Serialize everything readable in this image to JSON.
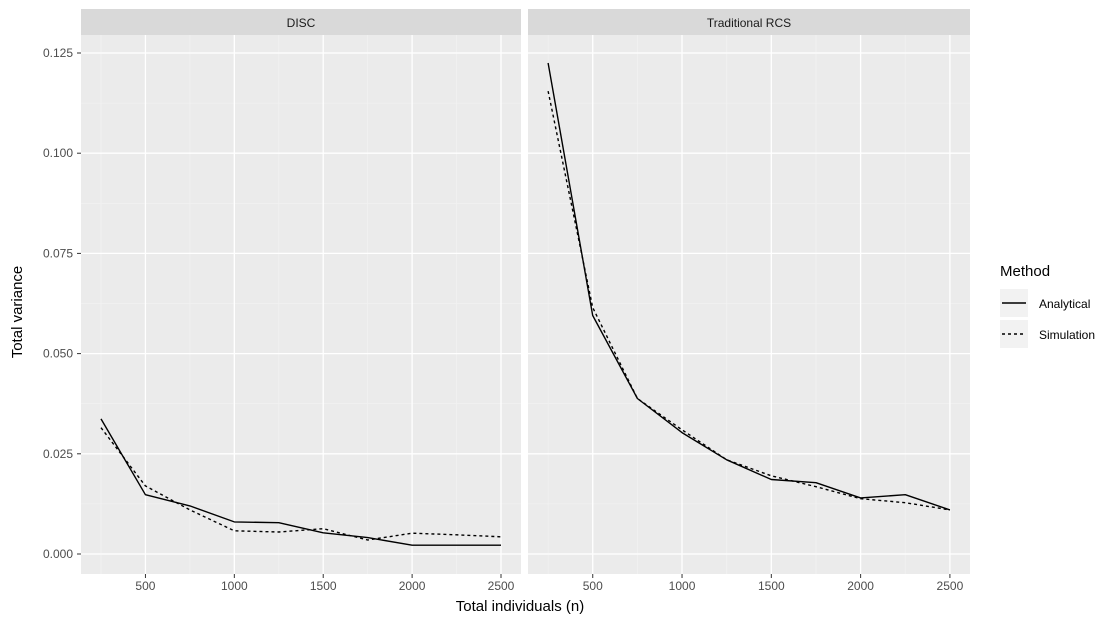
{
  "chart_data": {
    "type": "line",
    "xlabel": "Total individuals (n)",
    "ylabel": "Total variance",
    "xlim": [
      250,
      2500
    ],
    "ylim": [
      0,
      0.125
    ],
    "x_ticks": [
      500,
      1000,
      1500,
      2000,
      2500
    ],
    "x_tick_labels": [
      "500",
      "1000",
      "1500",
      "2000",
      "2500"
    ],
    "y_ticks": [
      0,
      0.025,
      0.05,
      0.075,
      0.1,
      0.125
    ],
    "y_tick_labels": [
      "0.000",
      "0.025",
      "0.050",
      "0.075",
      "0.100",
      "0.125"
    ],
    "grid": true,
    "legend": {
      "title": "Method",
      "position": "right",
      "entries": [
        {
          "name": "Analytical",
          "linetype": "solid"
        },
        {
          "name": "Simulation",
          "linetype": "dashed"
        }
      ]
    },
    "panels": [
      {
        "title": "DISC",
        "x": [
          250,
          500,
          750,
          1000,
          1250,
          1500,
          1750,
          2000,
          2250,
          2500
        ],
        "series": [
          {
            "name": "Analytical",
            "values": [
              0.0337,
              0.0148,
              0.012,
              0.008,
              0.0078,
              0.0053,
              0.0041,
              0.0022,
              0.0022,
              0.0022
            ]
          },
          {
            "name": "Simulation",
            "values": [
              0.0315,
              0.017,
              0.011,
              0.0058,
              0.0055,
              0.0063,
              0.0035,
              0.0052,
              0.0048,
              0.0043
            ]
          }
        ]
      },
      {
        "title": "Traditional RCS",
        "x": [
          250,
          500,
          750,
          1000,
          1250,
          1500,
          1750,
          2000,
          2250,
          2500
        ],
        "series": [
          {
            "name": "Analytical",
            "values": [
              0.1225,
              0.0595,
              0.0388,
              0.0303,
              0.0235,
              0.0186,
              0.0178,
              0.014,
              0.0148,
              0.011
            ]
          },
          {
            "name": "Simulation",
            "values": [
              0.1155,
              0.0615,
              0.0388,
              0.031,
              0.0235,
              0.0195,
              0.0168,
              0.0138,
              0.0128,
              0.011
            ]
          }
        ]
      }
    ],
    "colors": {
      "panel_background": "#ebebeb",
      "strip_background": "#d9d9d9",
      "grid_major": "#ffffff",
      "grid_minor": "#f2f2f2",
      "line": "#000000",
      "tick_text": "#4d4d4d"
    }
  }
}
